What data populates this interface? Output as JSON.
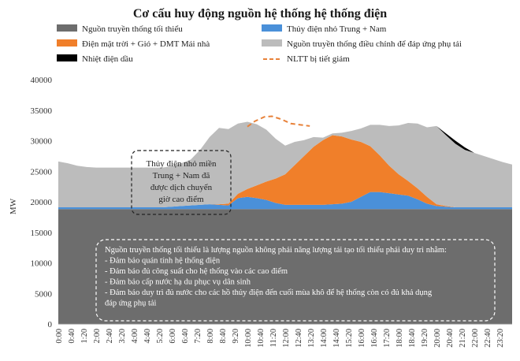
{
  "chart_data": {
    "type": "area",
    "title": "Cơ cấu huy động nguồn hệ thống hệ thống điện",
    "ylabel": "MW",
    "ylim": [
      0,
      40000
    ],
    "yticks": [
      0,
      5000,
      10000,
      15000,
      20000,
      25000,
      30000,
      35000,
      40000
    ],
    "grid": false,
    "legend_position": "top",
    "x_hours": [
      0,
      0.5,
      1,
      1.5,
      2,
      2.5,
      3,
      3.5,
      4,
      4.5,
      5,
      5.5,
      6,
      6.5,
      7,
      7.5,
      8,
      8.5,
      9,
      9.5,
      10,
      10.5,
      11,
      11.5,
      12,
      12.5,
      13,
      13.5,
      14,
      14.5,
      15,
      15.5,
      16,
      16.5,
      17,
      17.5,
      18,
      18.5,
      19,
      19.5,
      20,
      20.5,
      21,
      21.5,
      22,
      22.5,
      23,
      23.5,
      24
    ],
    "x_tick_labels": [
      "0:00",
      "0:40",
      "1:20",
      "2:00",
      "2:40",
      "3:20",
      "4:00",
      "4:40",
      "5:20",
      "6:00",
      "6:40",
      "7:20",
      "8:00",
      "8:40",
      "9:20",
      "10:00",
      "10:40",
      "11:20",
      "12:00",
      "12:40",
      "13:20",
      "14:00",
      "14:40",
      "15:20",
      "16:00",
      "16:40",
      "17:20",
      "18:00",
      "18:40",
      "19:20",
      "20:00",
      "20:40",
      "21:20",
      "22:00",
      "22:40",
      "23:20"
    ],
    "series": [
      {
        "name": "Nguồn truyền thống tối thiểu",
        "color": "#6d6d6d",
        "values": [
          18800,
          18800,
          18800,
          18800,
          18800,
          18800,
          18800,
          18800,
          18800,
          18800,
          18800,
          18800,
          18800,
          18800,
          18800,
          18800,
          18800,
          18800,
          18800,
          18800,
          18800,
          18800,
          18800,
          18800,
          18800,
          18800,
          18800,
          18800,
          18800,
          18800,
          18800,
          18800,
          18800,
          18800,
          18800,
          18800,
          18800,
          18800,
          18800,
          18800,
          18800,
          18800,
          18800,
          18800,
          18800,
          18800,
          18800,
          18800,
          18800
        ]
      },
      {
        "name": "Thủy điện nhỏ Trung + Nam",
        "color": "#4a90d9",
        "values": [
          300,
          300,
          300,
          300,
          300,
          300,
          300,
          300,
          300,
          300,
          300,
          300,
          400,
          500,
          600,
          700,
          800,
          700,
          600,
          1800,
          2000,
          1800,
          1500,
          1000,
          700,
          700,
          700,
          700,
          700,
          800,
          900,
          1200,
          2000,
          2800,
          2800,
          2600,
          2400,
          2200,
          1600,
          900,
          500,
          400,
          300,
          300,
          300,
          300,
          300,
          300,
          300
        ]
      },
      {
        "name": "Điện mặt trời + Gió + DMT Mái nhà",
        "color": "#f07f2a",
        "values": [
          0,
          0,
          0,
          0,
          0,
          0,
          0,
          0,
          0,
          0,
          0,
          0,
          0,
          0,
          0,
          0,
          0,
          100,
          300,
          700,
          1300,
          2100,
          3000,
          4000,
          5000,
          6500,
          8000,
          9500,
          10600,
          11300,
          11000,
          10200,
          9000,
          7500,
          6000,
          4500,
          3300,
          2400,
          1800,
          1100,
          300,
          100,
          0,
          0,
          0,
          0,
          0,
          0,
          0
        ]
      },
      {
        "name": "Nguồn truyền thống điều chỉnh để đáp ứng phụ tải",
        "color": "#bcbcbc",
        "values": [
          7500,
          7200,
          6800,
          6600,
          6500,
          6500,
          6500,
          6500,
          6500,
          6500,
          6500,
          6500,
          6600,
          7000,
          7500,
          9000,
          11000,
          12500,
          12200,
          11500,
          11000,
          10000,
          8500,
          6500,
          4700,
          3800,
          2600,
          1600,
          400,
          300,
          600,
          1400,
          2200,
          3500,
          5000,
          6500,
          8000,
          9500,
          10600,
          11400,
          12800,
          11600,
          10400,
          9400,
          8900,
          8400,
          7900,
          7400,
          7000
        ]
      },
      {
        "name": "Nhiệt điện dầu",
        "color": "#000000",
        "values": [
          0,
          0,
          0,
          0,
          0,
          0,
          0,
          0,
          0,
          0,
          0,
          0,
          0,
          0,
          0,
          0,
          0,
          0,
          0,
          0,
          0,
          0,
          0,
          0,
          0,
          0,
          0,
          0,
          0,
          0,
          0,
          0,
          0,
          0,
          0,
          0,
          0,
          0,
          0,
          0,
          0,
          300,
          500,
          400,
          0,
          0,
          0,
          0,
          0
        ]
      },
      {
        "name": "NLTT bị tiết giảm",
        "color": "#e8823a",
        "style": "dashed",
        "x_hours": [
          10.0,
          10.4,
          10.9,
          11.3,
          11.8,
          12.3,
          12.8,
          13.3
        ],
        "values": [
          32300,
          33200,
          33900,
          34000,
          33500,
          32800,
          32600,
          32400
        ]
      }
    ],
    "annotations": [
      {
        "id": "shift",
        "lines": [
          "Thủy điện nhỏ miền",
          "Trung + Nam đã",
          "được dịch chuyển",
          "giờ cao điểm"
        ]
      },
      {
        "id": "note",
        "lines": [
          "Nguồn truyền thống tối thiểu là lượng nguồn không phải năng lượng tái tạo tối thiểu phải duy trì nhằm:",
          "- Đảm bảo quán tính hệ thống điện",
          "- Đảm bảo đủ công suất cho hệ thống vào các cao điểm",
          "- Đảm bảo cấp nước hạ du phục vụ dân sinh",
          "- Đảm bảo duy trì đủ nước cho các hồ thủy điện đến cuối mùa khô để hệ thống còn có đủ khả dụng",
          "đáp ứng phụ tải"
        ]
      }
    ]
  }
}
